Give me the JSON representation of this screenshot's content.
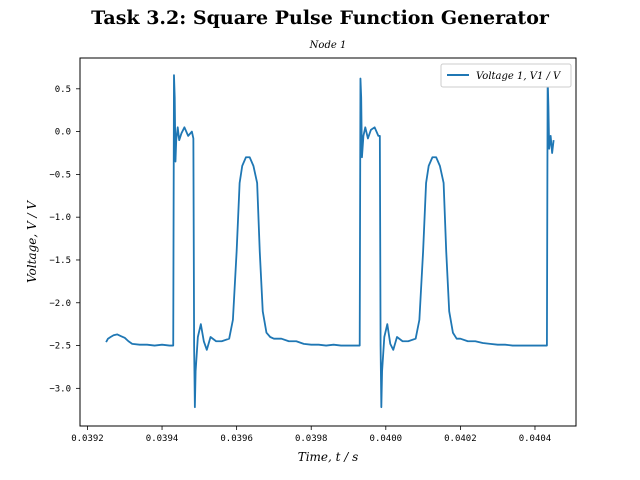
{
  "chart_data": {
    "type": "line",
    "title": "Task 3.2: Square Pulse Function Generator",
    "subtitle": "Node 1",
    "xlabel": "Time, t / s",
    "ylabel": "Voltage, V / V",
    "xlim": [
      0.03918,
      0.04051
    ],
    "ylim": [
      -3.44,
      0.86
    ],
    "x_ticks": [
      0.0392,
      0.0394,
      0.0396,
      0.0398,
      0.04,
      0.0402,
      0.0404
    ],
    "x_tick_labels": [
      "0.0392",
      "0.0394",
      "0.0396",
      "0.0398",
      "0.0400",
      "0.0402",
      "0.0404"
    ],
    "y_ticks": [
      0.5,
      0.0,
      -0.5,
      -1.0,
      -1.5,
      -2.0,
      -2.5,
      -3.0
    ],
    "y_tick_labels": [
      "0.5",
      "0.0",
      "−0.5",
      "−1.0",
      "−1.5",
      "−2.0",
      "−2.5",
      "−3.0"
    ],
    "grid": false,
    "legend_position": "top-right",
    "series": [
      {
        "name": "Voltage 1, V1 / V",
        "color": "#1f77b4",
        "points": [
          [
            0.03925,
            -2.46
          ],
          [
            0.039255,
            -2.42
          ],
          [
            0.039262,
            -2.4
          ],
          [
            0.03927,
            -2.38
          ],
          [
            0.03928,
            -2.37
          ],
          [
            0.03929,
            -2.39
          ],
          [
            0.0393,
            -2.41
          ],
          [
            0.03931,
            -2.45
          ],
          [
            0.03932,
            -2.48
          ],
          [
            0.03934,
            -2.49
          ],
          [
            0.03936,
            -2.49
          ],
          [
            0.03938,
            -2.5
          ],
          [
            0.0394,
            -2.49
          ],
          [
            0.03942,
            -2.5
          ],
          [
            0.03943,
            -2.5
          ],
          [
            0.039432,
            0.66
          ],
          [
            0.039434,
            0.4
          ],
          [
            0.039436,
            -0.35
          ],
          [
            0.039438,
            -0.1
          ],
          [
            0.039442,
            0.05
          ],
          [
            0.039446,
            -0.1
          ],
          [
            0.039452,
            -0.02
          ],
          [
            0.03946,
            0.05
          ],
          [
            0.03947,
            -0.05
          ],
          [
            0.03948,
            0.0
          ],
          [
            0.039484,
            -0.08
          ],
          [
            0.039486,
            -2.5
          ],
          [
            0.039488,
            -3.22
          ],
          [
            0.03949,
            -2.8
          ],
          [
            0.039496,
            -2.4
          ],
          [
            0.039504,
            -2.25
          ],
          [
            0.039512,
            -2.45
          ],
          [
            0.03952,
            -2.55
          ],
          [
            0.03953,
            -2.4
          ],
          [
            0.039545,
            -2.45
          ],
          [
            0.03956,
            -2.45
          ],
          [
            0.03958,
            -2.42
          ],
          [
            0.03959,
            -2.2
          ],
          [
            0.0396,
            -1.4
          ],
          [
            0.039608,
            -0.6
          ],
          [
            0.039615,
            -0.4
          ],
          [
            0.039625,
            -0.3
          ],
          [
            0.039635,
            -0.3
          ],
          [
            0.039645,
            -0.4
          ],
          [
            0.039655,
            -0.6
          ],
          [
            0.039662,
            -1.4
          ],
          [
            0.03967,
            -2.1
          ],
          [
            0.03968,
            -2.35
          ],
          [
            0.03969,
            -2.4
          ],
          [
            0.0397,
            -2.42
          ],
          [
            0.03972,
            -2.42
          ],
          [
            0.03974,
            -2.45
          ],
          [
            0.03976,
            -2.45
          ],
          [
            0.03978,
            -2.48
          ],
          [
            0.0398,
            -2.49
          ],
          [
            0.03982,
            -2.49
          ],
          [
            0.03984,
            -2.5
          ],
          [
            0.03986,
            -2.49
          ],
          [
            0.03988,
            -2.5
          ],
          [
            0.0399,
            -2.5
          ],
          [
            0.03992,
            -2.5
          ],
          [
            0.03993,
            -2.5
          ],
          [
            0.039932,
            0.62
          ],
          [
            0.039934,
            0.4
          ],
          [
            0.039936,
            -0.3
          ],
          [
            0.03994,
            -0.05
          ],
          [
            0.039945,
            0.05
          ],
          [
            0.039952,
            -0.08
          ],
          [
            0.03996,
            0.02
          ],
          [
            0.03997,
            0.05
          ],
          [
            0.03998,
            -0.05
          ],
          [
            0.039984,
            -0.05
          ],
          [
            0.039986,
            -2.5
          ],
          [
            0.039988,
            -3.22
          ],
          [
            0.03999,
            -2.8
          ],
          [
            0.039996,
            -2.4
          ],
          [
            0.040004,
            -2.25
          ],
          [
            0.040012,
            -2.48
          ],
          [
            0.04002,
            -2.55
          ],
          [
            0.04003,
            -2.4
          ],
          [
            0.040045,
            -2.45
          ],
          [
            0.04006,
            -2.45
          ],
          [
            0.04008,
            -2.42
          ],
          [
            0.04009,
            -2.2
          ],
          [
            0.0401,
            -1.4
          ],
          [
            0.040108,
            -0.6
          ],
          [
            0.040115,
            -0.4
          ],
          [
            0.040125,
            -0.3
          ],
          [
            0.040135,
            -0.3
          ],
          [
            0.040145,
            -0.4
          ],
          [
            0.040155,
            -0.6
          ],
          [
            0.040162,
            -1.4
          ],
          [
            0.04017,
            -2.1
          ],
          [
            0.04018,
            -2.35
          ],
          [
            0.04019,
            -2.42
          ],
          [
            0.0402,
            -2.42
          ],
          [
            0.04022,
            -2.45
          ],
          [
            0.04024,
            -2.45
          ],
          [
            0.04026,
            -2.47
          ],
          [
            0.04028,
            -2.48
          ],
          [
            0.0403,
            -2.49
          ],
          [
            0.04032,
            -2.49
          ],
          [
            0.04034,
            -2.5
          ],
          [
            0.04036,
            -2.5
          ],
          [
            0.04038,
            -2.5
          ],
          [
            0.04042,
            -2.5
          ],
          [
            0.040432,
            -2.5
          ],
          [
            0.040434,
            0.62
          ],
          [
            0.040436,
            0.3
          ],
          [
            0.040438,
            -0.2
          ],
          [
            0.040442,
            -0.05
          ],
          [
            0.040446,
            -0.25
          ],
          [
            0.04045,
            -0.1
          ]
        ]
      }
    ]
  }
}
